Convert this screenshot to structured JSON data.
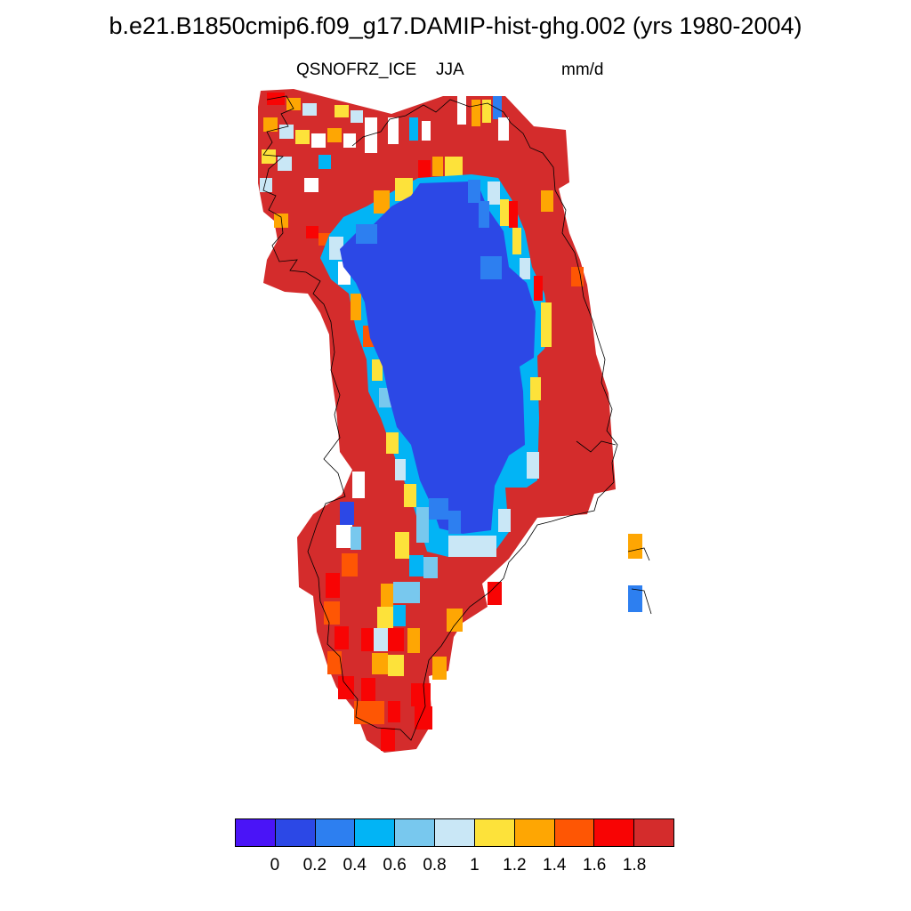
{
  "title": "b.e21.B1850cmip6.f09_g17.DAMIP-hist-ghg.002 (yrs 1980-2004)",
  "subtitle_left": "QSNOFRZ_ICE",
  "subtitle_center": "JJA",
  "subtitle_right": "mm/d",
  "colorbar": {
    "colors": [
      "#4a14f7",
      "#2c48e6",
      "#2d7ff0",
      "#02b4f5",
      "#78c8ee",
      "#c9e7f6",
      "#fde23a",
      "#fea603",
      "#fe5604",
      "#f80404",
      "#d42c2c"
    ],
    "tick_labels": [
      "0",
      "0.2",
      "0.4",
      "0.6",
      "0.8",
      "1",
      "1.2",
      "1.4",
      "1.6",
      "1.8"
    ]
  },
  "field": {
    "interior_value_range": "< 0.2",
    "margin_value_range": "> 1.8"
  }
}
